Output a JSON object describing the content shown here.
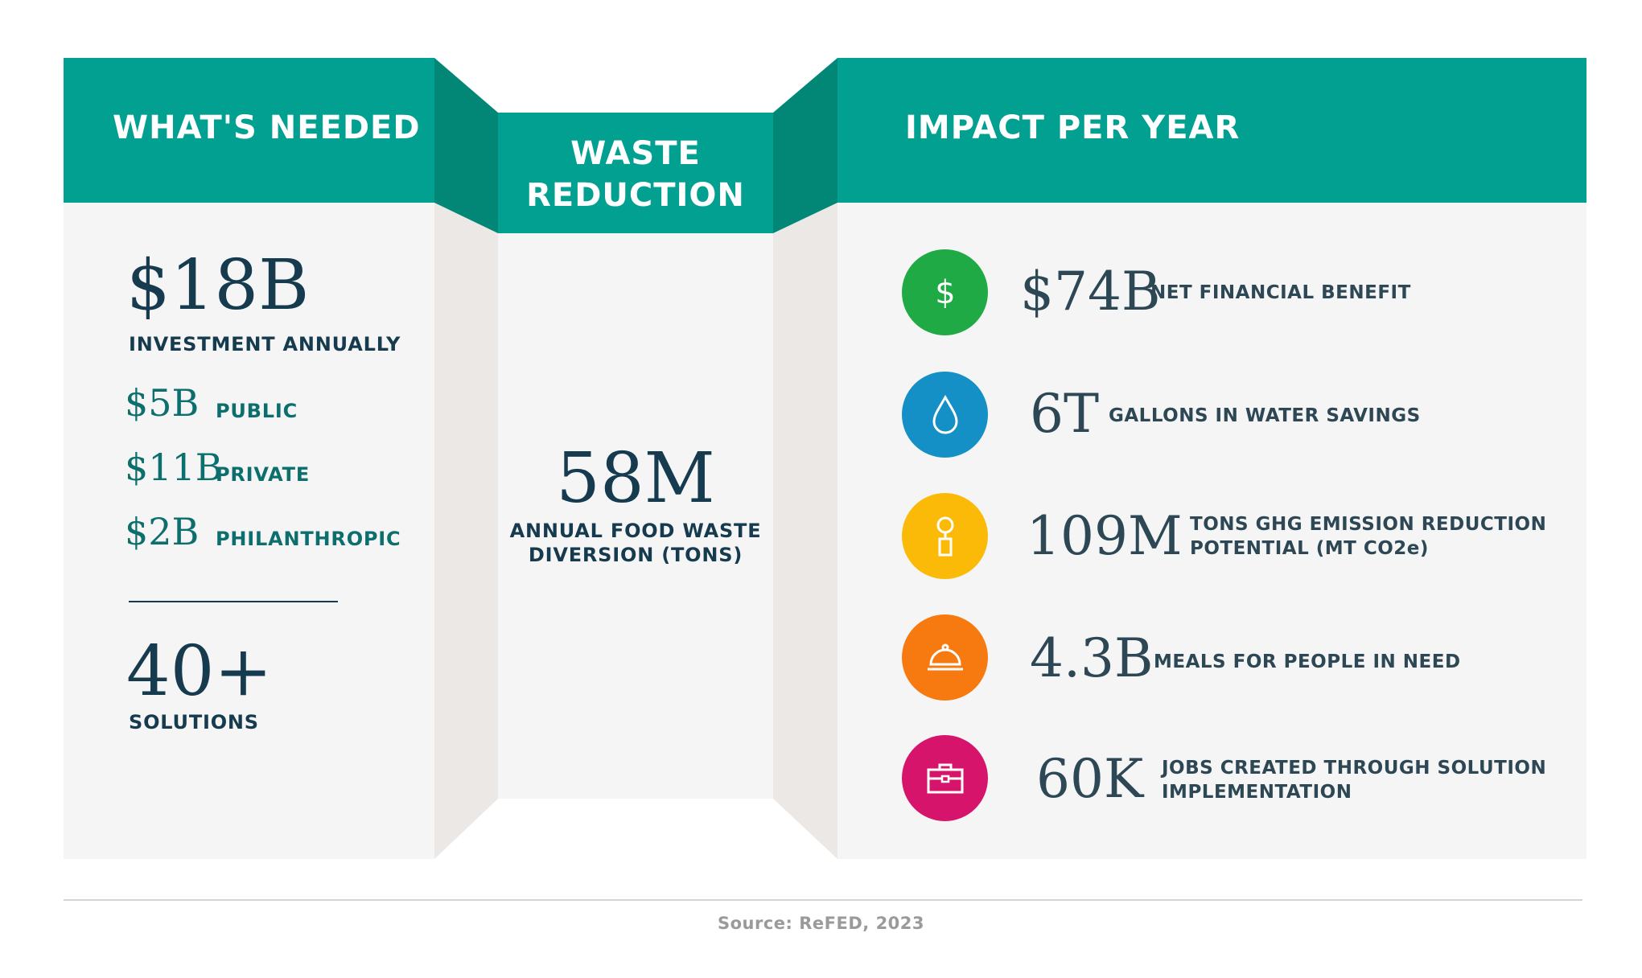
{
  "colors": {
    "teal": "#02a091",
    "teal_dark": "#028777",
    "panel": "#f5f5f5",
    "navy": "#163a4e",
    "green": "#1faa45",
    "blue": "#1590c6",
    "yellow": "#fbba08",
    "orange": "#f77a10",
    "magenta": "#d6146b"
  },
  "left": {
    "title": "WHAT'S NEEDED",
    "investment_value": "$18B",
    "investment_label": "INVESTMENT ANNUALLY",
    "breakdown": [
      {
        "value": "$5B",
        "label": "PUBLIC"
      },
      {
        "value": "$11B",
        "label": "PRIVATE"
      },
      {
        "value": "$2B",
        "label": "PHILANTHROPIC"
      }
    ],
    "solutions_value": "40+",
    "solutions_label": "SOLUTIONS"
  },
  "middle": {
    "title_line1": "WASTE",
    "title_line2": "REDUCTION",
    "value": "58M",
    "label_line1": "ANNUAL FOOD WASTE",
    "label_line2": "DIVERSION (TONS)"
  },
  "right": {
    "title": "IMPACT PER YEAR",
    "items": [
      {
        "icon": "dollar-icon",
        "value": "$74B",
        "label_line1": "NET FINANCIAL BENEFIT",
        "label_line2": ""
      },
      {
        "icon": "water-drop-icon",
        "value": "6T",
        "label_line1": "GALLONS IN WATER SAVINGS",
        "label_line2": ""
      },
      {
        "icon": "emission-icon",
        "value": "109M",
        "label_line1": "TONS GHG EMISSION REDUCTION",
        "label_line2": "POTENTIAL (MT CO2e)"
      },
      {
        "icon": "meal-cloche-icon",
        "value": "4.3B",
        "label_line1": "MEALS FOR PEOPLE IN NEED",
        "label_line2": ""
      },
      {
        "icon": "briefcase-icon",
        "value": "60K",
        "label_line1": "JOBS CREATED THROUGH SOLUTION",
        "label_line2": "IMPLEMENTATION"
      }
    ]
  },
  "footer": {
    "source": "Source: ReFED, 2023"
  }
}
